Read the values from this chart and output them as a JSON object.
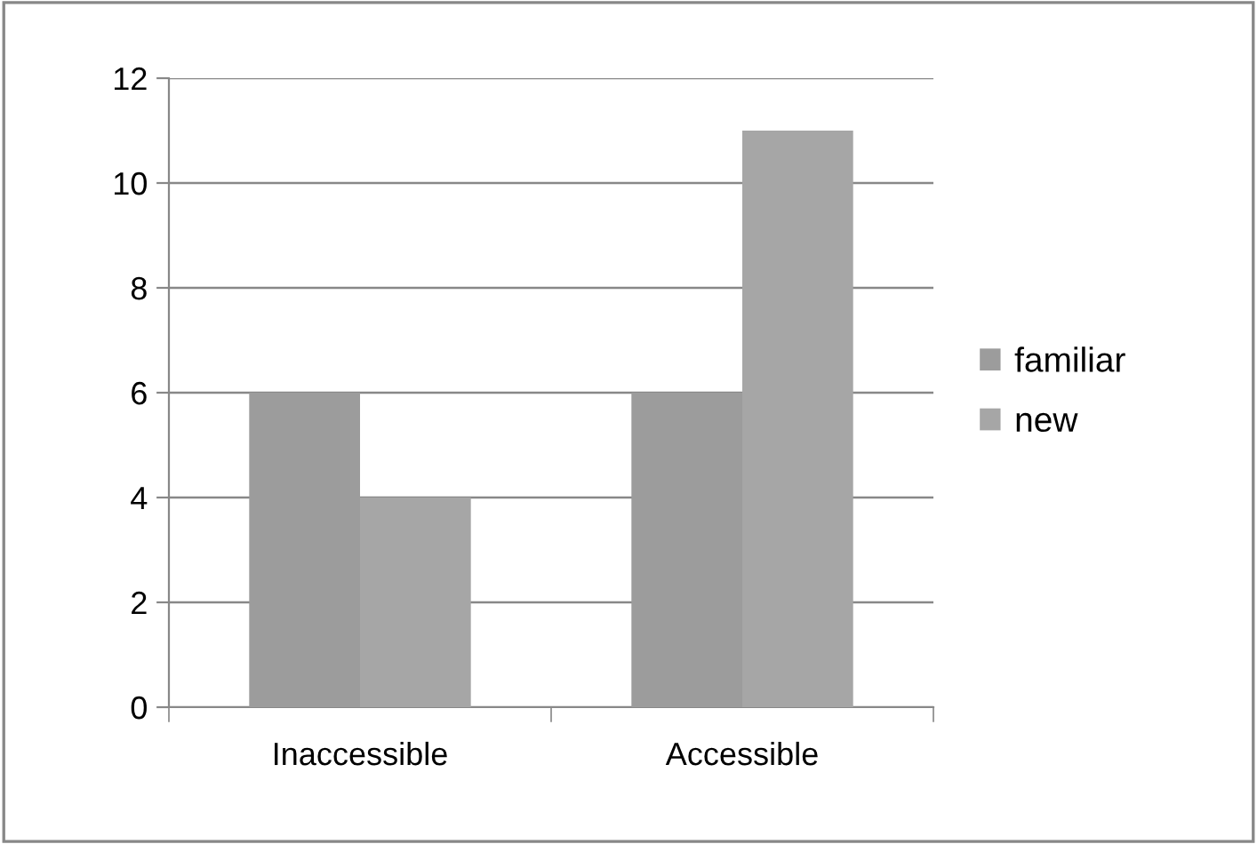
{
  "chart_data": {
    "type": "bar",
    "categories": [
      "Inaccessible",
      "Accessible"
    ],
    "series": [
      {
        "name": "familiar",
        "color": "#9c9c9c",
        "values": [
          6,
          6
        ]
      },
      {
        "name": "new",
        "color": "#a6a6a6",
        "values": [
          4,
          11
        ]
      }
    ],
    "ylim": [
      0,
      12
    ],
    "yticks": [
      0,
      2,
      4,
      6,
      8,
      10,
      12
    ],
    "grid": "y",
    "legend": "right"
  }
}
